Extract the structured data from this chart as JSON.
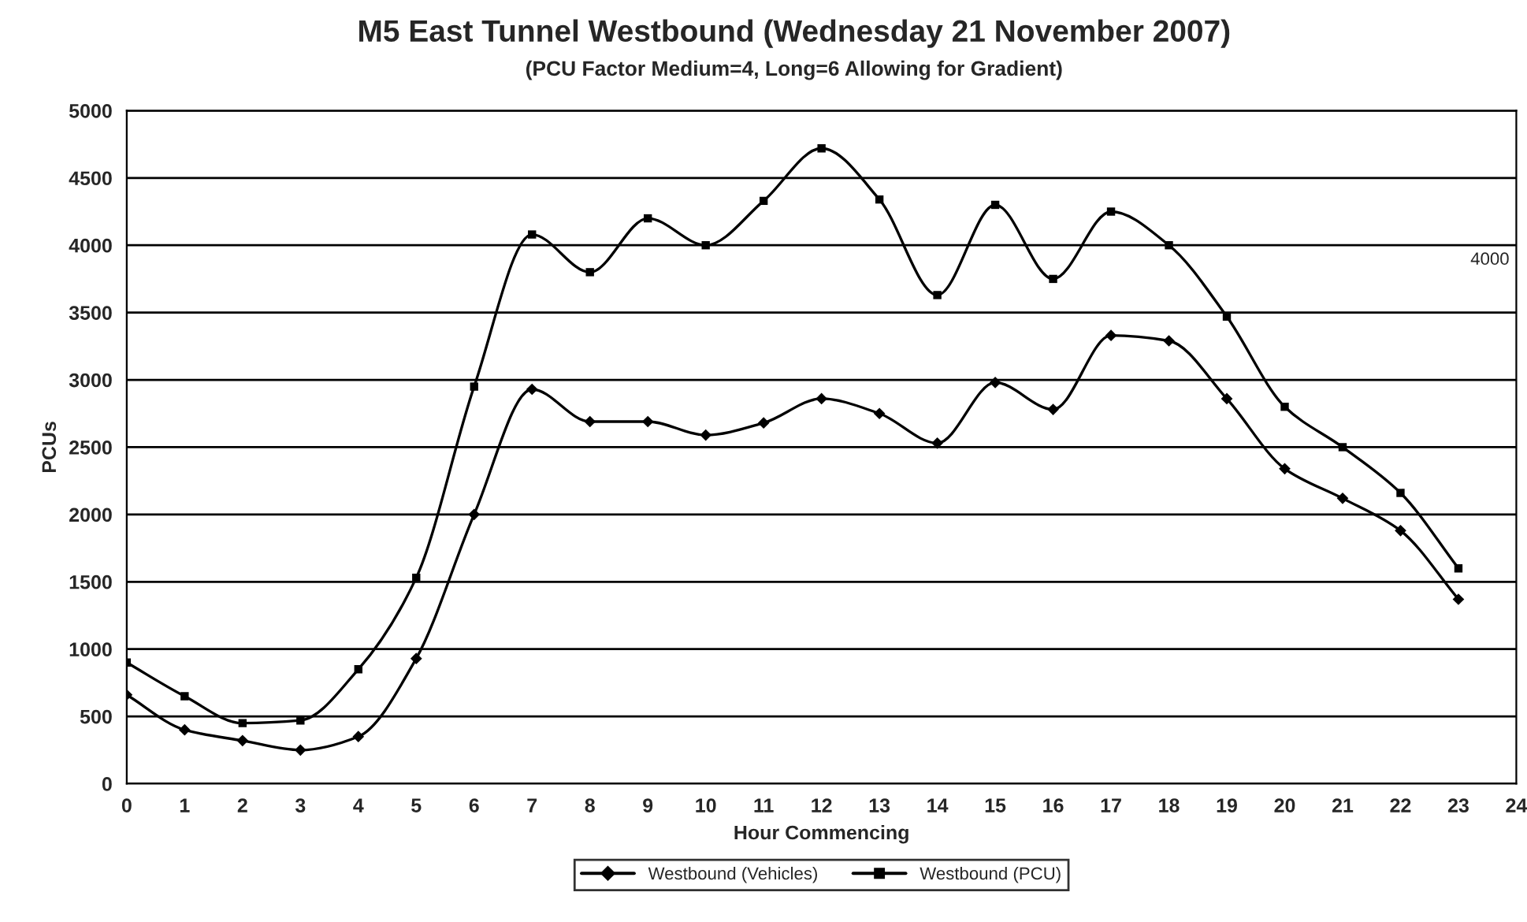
{
  "chart_data": {
    "type": "line",
    "title": "M5 East Tunnel Westbound (Wednesday 21 November 2007)",
    "subtitle": "(PCU Factor Medium=4, Long=6 Allowing for Gradient)",
    "xlabel": "Hour Commencing",
    "ylabel": "PCUs",
    "x": [
      0,
      1,
      2,
      3,
      4,
      5,
      6,
      7,
      8,
      9,
      10,
      11,
      12,
      13,
      14,
      15,
      16,
      17,
      18,
      19,
      20,
      21,
      22,
      23
    ],
    "series": [
      {
        "name": "Westbound (Vehicles)",
        "color": "#000000",
        "marker": "diamond",
        "values": [
          660,
          400,
          320,
          250,
          350,
          930,
          2000,
          2930,
          2690,
          2690,
          2590,
          2680,
          2860,
          2750,
          2530,
          2980,
          2780,
          3330,
          3290,
          2860,
          2340,
          2120,
          1880,
          1370
        ]
      },
      {
        "name": "Westbound (PCU)",
        "color": "#000000",
        "marker": "square",
        "values": [
          900,
          650,
          450,
          470,
          850,
          1530,
          2950,
          4080,
          3800,
          4200,
          4000,
          4330,
          4720,
          4340,
          3630,
          4300,
          3750,
          4250,
          4000,
          3470,
          2800,
          2500,
          2160,
          1600
        ]
      }
    ],
    "annotations": [
      "4000"
    ],
    "xlim": [
      0,
      24
    ],
    "xticks": [
      0,
      1,
      2,
      3,
      4,
      5,
      6,
      7,
      8,
      9,
      10,
      11,
      12,
      13,
      14,
      15,
      16,
      17,
      18,
      19,
      20,
      21,
      22,
      23,
      24
    ],
    "ylim": [
      0,
      5000
    ],
    "yticks": [
      0,
      500,
      1000,
      1500,
      2000,
      2500,
      3000,
      3500,
      4000,
      4500,
      5000
    ],
    "grid": "y",
    "legend": "bottom",
    "line_style": "solid"
  }
}
